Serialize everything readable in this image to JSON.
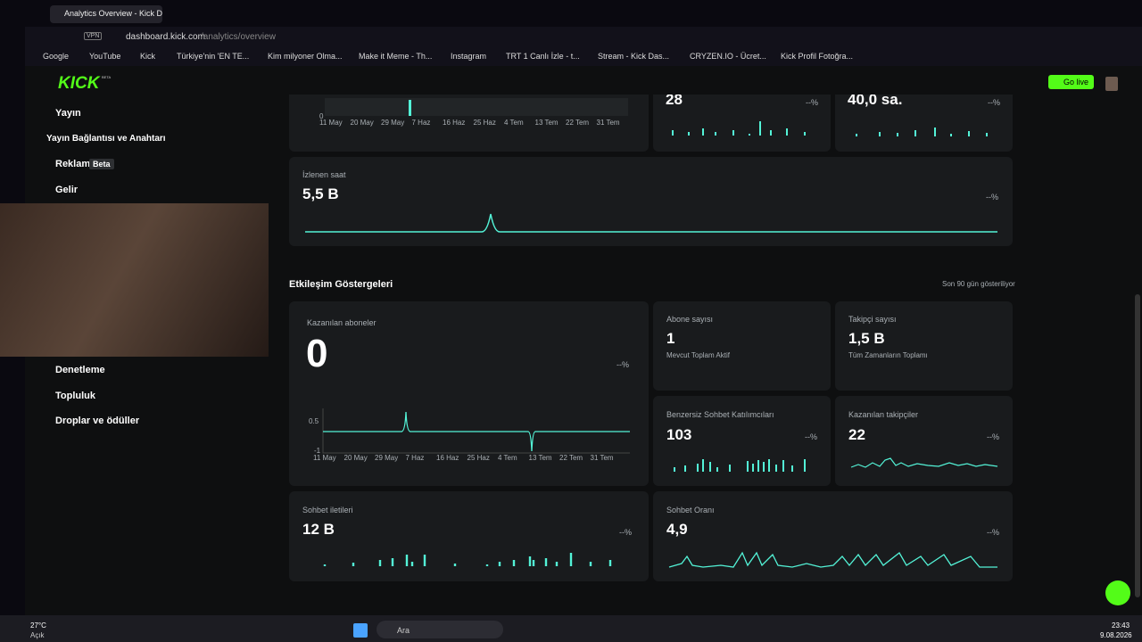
{
  "browser": {
    "tab_title": "Analytics Overview - Kick D",
    "url_host": "dashboard.kick.com",
    "url_path": "/analytics/overview",
    "vpn": "VPN",
    "bookmarks": [
      "Google",
      "YouTube",
      "Kick",
      "Türkiye'nin 'EN TE...",
      "Kim milyoner Olma...",
      "Make it Meme - Th...",
      "Instagram",
      "TRT 1 Canlı İzle - t...",
      "Stream - Kick Das...",
      "CRYZEN.IO - Ücret...",
      "Kick Profil Fotoğra..."
    ]
  },
  "header": {
    "logo": "KICK",
    "logo_badge": "BETA",
    "go_live": "Go live"
  },
  "sidebar": {
    "items": [
      "Yayın",
      "Yayın Bağlantısı ve Anahtarı",
      "Reklam",
      "Gelir",
      "Denetleme",
      "Topluluk",
      "Droplar ve ödüller"
    ],
    "badge": "Beta"
  },
  "top_cards": [
    {
      "value": "28",
      "trend": "--%"
    },
    {
      "value": "40,0 sa.",
      "trend": "--%"
    }
  ],
  "top_chart": {
    "y_label": "0",
    "dates": [
      "11 May",
      "20 May",
      "29 May",
      "7 Haz",
      "16 Haz",
      "25 Haz",
      "4 Tem",
      "13 Tem",
      "22 Tem",
      "31 Tem"
    ]
  },
  "watch_hours": {
    "label": "İzlenen saat",
    "value": "5,5 B",
    "trend": "--%"
  },
  "engagement": {
    "title": "Etkileşim Göstergeleri",
    "note": "Son 90 gün gösteriliyor",
    "subs_gained": {
      "label": "Kazanılan aboneler",
      "value": "0",
      "trend": "--%",
      "y_labels": [
        "0.5",
        "-1"
      ],
      "dates": [
        "11 May",
        "20 May",
        "29 May",
        "7 Haz",
        "16 Haz",
        "25 Haz",
        "4 Tem",
        "13 Tem",
        "22 Tem",
        "31 Tem"
      ]
    },
    "sub_count": {
      "label": "Abone sayısı",
      "value": "1",
      "sub": "Mevcut Toplam Aktif"
    },
    "follower_count": {
      "label": "Takipçi sayısı",
      "value": "1,5 B",
      "sub": "Tüm Zamanların Toplamı"
    },
    "unique_chatters": {
      "label": "Benzersiz Sohbet Katılımcıları",
      "value": "103",
      "trend": "--%"
    },
    "followers_gained": {
      "label": "Kazanılan takipçiler",
      "value": "22",
      "trend": "--%"
    },
    "chat_messages": {
      "label": "Sohbet iletileri",
      "value": "12 B",
      "trend": "--%"
    },
    "chat_rate": {
      "label": "Sohbet Oranı",
      "value": "4,9",
      "trend": "--%"
    }
  },
  "taskbar": {
    "temp": "27°C",
    "weather": "Açık",
    "search": "Ara",
    "time": "23:43",
    "date": "9.08.2026"
  }
}
